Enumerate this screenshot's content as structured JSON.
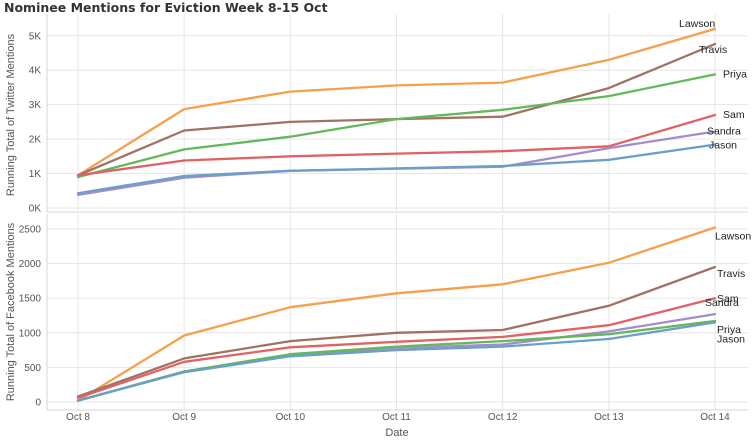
{
  "chart_data": {
    "type": "line",
    "title": "Nominee Mentions for Eviction Week 8-15 Oct",
    "xlabel": "Date",
    "categories": [
      "Oct 8",
      "Oct 9",
      "Oct 10",
      "Oct 11",
      "Oct 12",
      "Oct 13",
      "Oct 14"
    ],
    "panels": [
      {
        "ylabel": "Running Total of Twitter Mentions",
        "ylim": [
          0,
          5400
        ],
        "yticks": [
          0,
          1000,
          2000,
          3000,
          4000,
          5000
        ],
        "ytick_labels": [
          "0K",
          "1K",
          "2K",
          "3K",
          "4K",
          "5K"
        ],
        "series": [
          {
            "name": "Lawson",
            "color": "#f5a04a",
            "values": [
              950,
              2870,
              3380,
              3560,
              3640,
              4300,
              5200
            ]
          },
          {
            "name": "Travis",
            "color": "#a07264",
            "values": [
              950,
              2250,
              2500,
              2580,
              2650,
              3480,
              4760
            ]
          },
          {
            "name": "Priya",
            "color": "#63b859",
            "values": [
              900,
              1700,
              2070,
              2580,
              2850,
              3250,
              3880
            ]
          },
          {
            "name": "Sam",
            "color": "#e06265",
            "values": [
              950,
              1380,
              1500,
              1580,
              1650,
              1790,
              2700
            ]
          },
          {
            "name": "Sandra",
            "color": "#a58ccb",
            "values": [
              380,
              880,
              1080,
              1140,
              1200,
              1740,
              2220
            ]
          },
          {
            "name": "Jason",
            "color": "#6a9fca",
            "values": [
              430,
              930,
              1080,
              1150,
              1220,
              1400,
              1840
            ]
          }
        ]
      },
      {
        "ylabel": "Running Total of Facebook Mentions",
        "ylim": [
          0,
          2600
        ],
        "yticks": [
          0,
          500,
          1000,
          1500,
          2000,
          2500
        ],
        "ytick_labels": [
          "0",
          "500",
          "1000",
          "1500",
          "2000",
          "2500"
        ],
        "series": [
          {
            "name": "Lawson",
            "color": "#f5a04a",
            "values": [
              20,
              960,
              1370,
              1570,
              1700,
              2010,
              2520
            ]
          },
          {
            "name": "Travis",
            "color": "#a07264",
            "values": [
              80,
              630,
              880,
              1000,
              1040,
              1390,
              1950
            ]
          },
          {
            "name": "Sam",
            "color": "#e06265",
            "values": [
              60,
              580,
              790,
              870,
              940,
              1110,
              1500
            ]
          },
          {
            "name": "Sandra",
            "color": "#a58ccb",
            "values": [
              20,
              440,
              670,
              780,
              830,
              1020,
              1270
            ]
          },
          {
            "name": "Priya",
            "color": "#63b859",
            "values": [
              20,
              440,
              690,
              800,
              880,
              980,
              1170
            ]
          },
          {
            "name": "Jason",
            "color": "#6a9fca",
            "values": [
              20,
              430,
              660,
              750,
              800,
              910,
              1150
            ]
          }
        ]
      }
    ]
  }
}
